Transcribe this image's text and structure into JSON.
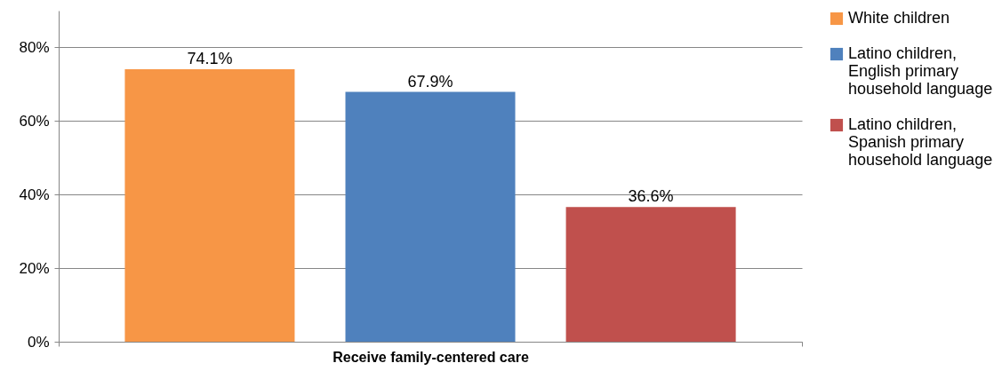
{
  "chart_data": {
    "type": "bar",
    "categories": [
      "Receive family-centered care"
    ],
    "series": [
      {
        "name": "White children",
        "color": "#f79646",
        "values": [
          74.1
        ],
        "value_labels": [
          "74.1%"
        ]
      },
      {
        "name": "Latino children, English primary household language",
        "color": "#4f81bd",
        "values": [
          67.9
        ],
        "value_labels": [
          "67.9%"
        ]
      },
      {
        "name": "Latino children, Spanish primary household language",
        "color": "#c0504d",
        "values": [
          36.6
        ],
        "value_labels": [
          "36.6%"
        ]
      }
    ],
    "ylim": [
      0,
      90
    ],
    "yticks": [
      {
        "value": 0,
        "label": "0%"
      },
      {
        "value": 20,
        "label": "20%"
      },
      {
        "value": 40,
        "label": "40%"
      },
      {
        "value": 60,
        "label": "60%"
      },
      {
        "value": 80,
        "label": "80%"
      }
    ],
    "grid": "y",
    "legend": "right"
  }
}
